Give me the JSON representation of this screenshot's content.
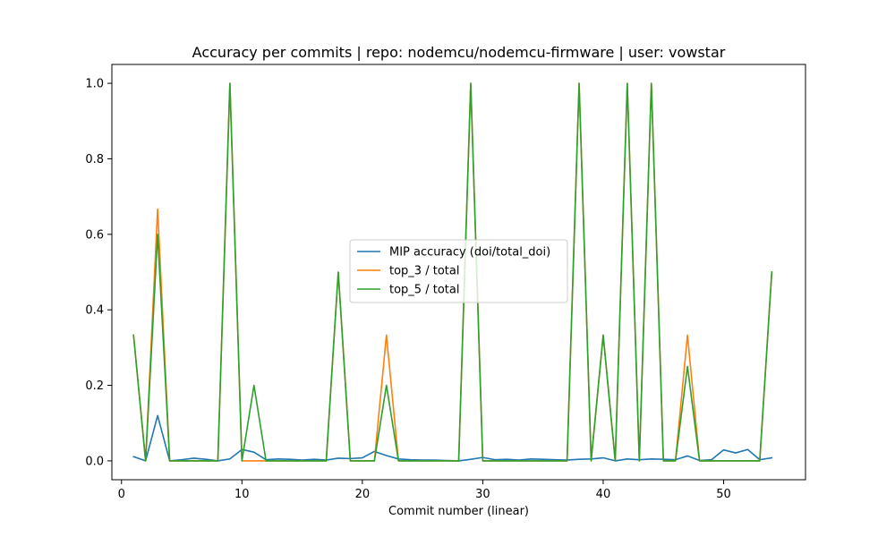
{
  "chart_data": {
    "type": "line",
    "title": "Accuracy per commits | repo: nodemcu/nodemcu-firmware | user: vowstar",
    "xlabel": "Commit number (linear)",
    "ylabel": "",
    "xlim": [
      -0.8,
      56.8
    ],
    "ylim": [
      -0.05,
      1.05
    ],
    "xticks": [
      0,
      10,
      20,
      30,
      40,
      50
    ],
    "yticks": [
      0.0,
      0.2,
      0.4,
      0.6,
      0.8,
      1.0
    ],
    "xtick_labels": [
      "0",
      "10",
      "20",
      "30",
      "40",
      "50"
    ],
    "ytick_labels": [
      "0.0",
      "0.2",
      "0.4",
      "0.6",
      "0.8",
      "1.0"
    ],
    "legend_position": "center",
    "x": [
      1,
      2,
      3,
      4,
      5,
      6,
      7,
      8,
      9,
      10,
      11,
      12,
      13,
      14,
      15,
      16,
      17,
      18,
      19,
      20,
      21,
      22,
      23,
      24,
      25,
      26,
      27,
      28,
      29,
      30,
      31,
      32,
      33,
      34,
      35,
      36,
      37,
      38,
      39,
      40,
      41,
      42,
      43,
      44,
      45,
      46,
      47,
      48,
      49,
      50,
      51,
      52,
      53,
      54
    ],
    "series": [
      {
        "name": "MIP accuracy (doi/total_doi)",
        "color": "#1f77b4",
        "values": [
          0.011,
          0.0,
          0.12,
          0.0,
          0.003,
          0.007,
          0.004,
          0.0,
          0.005,
          0.03,
          0.023,
          0.003,
          0.005,
          0.004,
          0.002,
          0.004,
          0.002,
          0.007,
          0.006,
          0.008,
          0.025,
          0.014,
          0.005,
          0.003,
          0.002,
          0.002,
          0.001,
          0.0,
          0.004,
          0.009,
          0.003,
          0.004,
          0.002,
          0.005,
          0.004,
          0.003,
          0.002,
          0.004,
          0.005,
          0.008,
          0.0,
          0.005,
          0.003,
          0.005,
          0.004,
          0.003,
          0.013,
          0.001,
          0.003,
          0.029,
          0.021,
          0.03,
          0.003,
          0.008
        ]
      },
      {
        "name": "top_3 / total",
        "color": "#ff7f0e",
        "values": [
          0.333,
          0.0,
          0.667,
          0.0,
          0.0,
          0.0,
          0.0,
          0.0,
          1.0,
          0.0,
          0.0,
          0.0,
          0.0,
          0.0,
          0.0,
          0.0,
          0.0,
          0.5,
          0.0,
          0.0,
          0.0,
          0.333,
          0.0,
          0.0,
          0.0,
          0.0,
          0.0,
          0.0,
          1.0,
          0.0,
          0.0,
          0.0,
          0.0,
          0.0,
          0.0,
          0.0,
          0.0,
          1.0,
          0.0,
          0.333,
          0.0,
          1.0,
          0.0,
          1.0,
          0.0,
          0.0,
          0.333,
          0.0,
          0.0,
          0.0,
          0.0,
          0.0,
          0.0,
          0.5
        ]
      },
      {
        "name": "top_5 / total",
        "color": "#2ca02c",
        "values": [
          0.333,
          0.0,
          0.6,
          0.0,
          0.0,
          0.0,
          0.0,
          0.0,
          1.0,
          0.0,
          0.2,
          0.0,
          0.0,
          0.0,
          0.0,
          0.0,
          0.0,
          0.5,
          0.0,
          0.0,
          0.0,
          0.2,
          0.0,
          0.0,
          0.0,
          0.0,
          0.0,
          0.0,
          1.0,
          0.0,
          0.0,
          0.0,
          0.0,
          0.0,
          0.0,
          0.0,
          0.0,
          1.0,
          0.0,
          0.333,
          0.0,
          1.0,
          0.0,
          1.0,
          0.0,
          0.0,
          0.25,
          0.0,
          0.0,
          0.0,
          0.0,
          0.0,
          0.0,
          0.5
        ]
      }
    ]
  }
}
